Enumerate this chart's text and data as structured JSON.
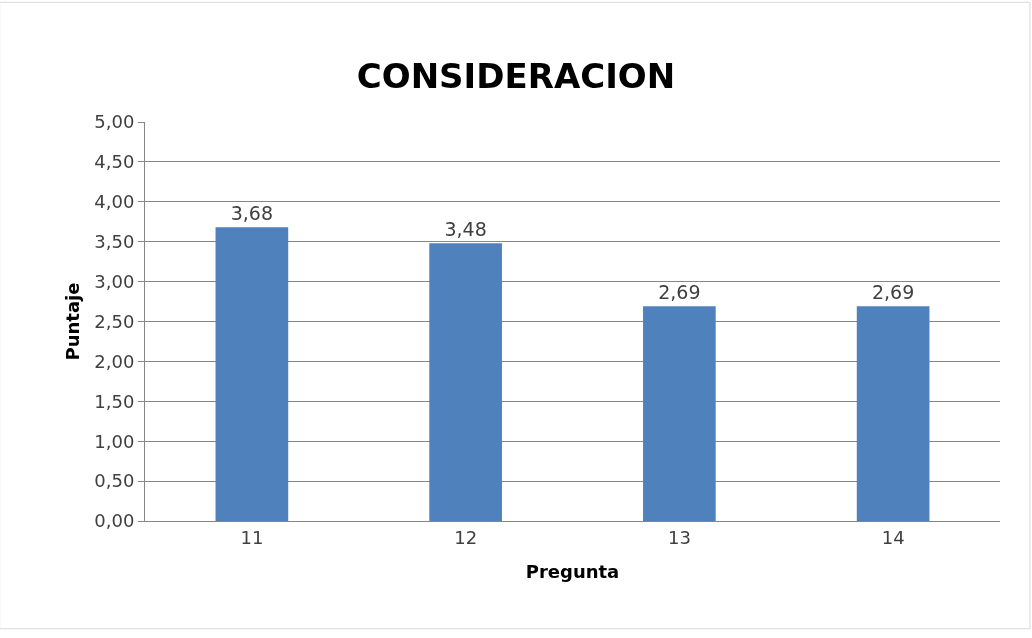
{
  "chart_data": {
    "type": "bar",
    "title": "CONSIDERACION",
    "xlabel": "Pregunta",
    "ylabel": "Puntaje",
    "categories": [
      "11",
      "12",
      "13",
      "14"
    ],
    "values": [
      3.68,
      3.48,
      2.69,
      2.69
    ],
    "value_labels": [
      "3,68",
      "3,48",
      "2,69",
      "2,69"
    ],
    "color": "#4f81bd",
    "ylim": [
      0,
      5
    ],
    "yticks": [
      {
        "value": 0,
        "label": "0,00"
      },
      {
        "value": 0.5,
        "label": "0,50"
      },
      {
        "value": 1,
        "label": "1,00"
      },
      {
        "value": 1.5,
        "label": "1,50"
      },
      {
        "value": 2,
        "label": "2,00"
      },
      {
        "value": 2.5,
        "label": "2,50"
      },
      {
        "value": 3,
        "label": "3,00"
      },
      {
        "value": 3.5,
        "label": "3,50"
      },
      {
        "value": 4,
        "label": "4,00"
      },
      {
        "value": 4.5,
        "label": "4,50"
      },
      {
        "value": 5,
        "label": "5,00"
      }
    ],
    "grid": "y",
    "legend": false
  }
}
